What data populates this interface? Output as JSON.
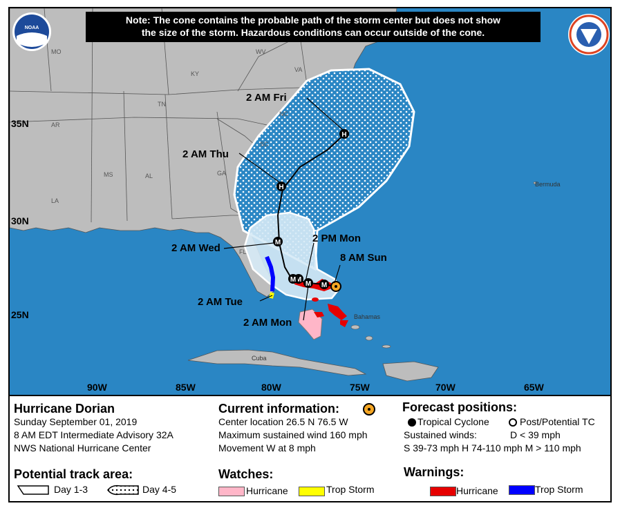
{
  "note": {
    "line1": "Note: The cone contains the probable path of the storm center but does not show",
    "line2": "the size of the storm. Hazardous conditions can occur outside of the cone."
  },
  "logos": {
    "noaa": "NOAA",
    "nws": "NATIONAL WEATHER SERVICE"
  },
  "map_labels": {
    "states": [
      "MO",
      "WV",
      "KY",
      "VA",
      "TN",
      "NC",
      "AR",
      "SC",
      "MS",
      "AL",
      "GA",
      "LA",
      "FL"
    ],
    "places": {
      "bermuda": "Bermuda",
      "bahamas": "Bahamas",
      "cuba": "Cuba"
    },
    "lat": [
      "35N",
      "30N",
      "25N"
    ],
    "lon": [
      "90W",
      "85W",
      "80W",
      "75W",
      "70W",
      "65W"
    ]
  },
  "track_labels": {
    "fri": "2 AM Fri",
    "thu": "2 AM Thu",
    "wed": "2 AM Wed",
    "tue": "2 AM Tue",
    "mon2am": "2 AM Mon",
    "mon2pm": "2 PM Mon",
    "sun": "8 AM Sun"
  },
  "markers": {
    "major": "M",
    "hurricane": "H"
  },
  "storm": {
    "name": "Hurricane Dorian",
    "date": "Sunday September 01, 2019",
    "advisory": "8 AM EDT Intermediate Advisory 32A",
    "center": "NWS National Hurricane Center"
  },
  "current": {
    "heading": "Current information:",
    "location": "Center location 26.5 N 76.5 W",
    "wind": "Maximum sustained wind 160 mph",
    "movement": "Movement W at 8 mph"
  },
  "forecast": {
    "heading": "Forecast positions:",
    "tc": "Tropical Cyclone",
    "ptc": "Post/Potential TC",
    "sustained": "Sustained winds:",
    "d": "D < 39 mph",
    "scale": "S 39-73 mph  H 74-110 mph  M > 110 mph"
  },
  "track_area": {
    "heading": "Potential track area:",
    "day13": "Day 1-3",
    "day45": "Day 4-5"
  },
  "watches": {
    "heading": "Watches:",
    "hurricane": "Hurricane",
    "trop": "Trop Storm"
  },
  "warnings": {
    "heading": "Warnings:",
    "hurricane": "Hurricane",
    "trop": "Trop Storm"
  },
  "colors": {
    "ocean": "#2a86c4",
    "land": "#bdbdbd",
    "cone13": "#d6eaf6",
    "hurr_watch": "#ffb6c8",
    "ts_watch": "#ffff00",
    "hurr_warn": "#e60000",
    "ts_warn": "#0000ff"
  }
}
